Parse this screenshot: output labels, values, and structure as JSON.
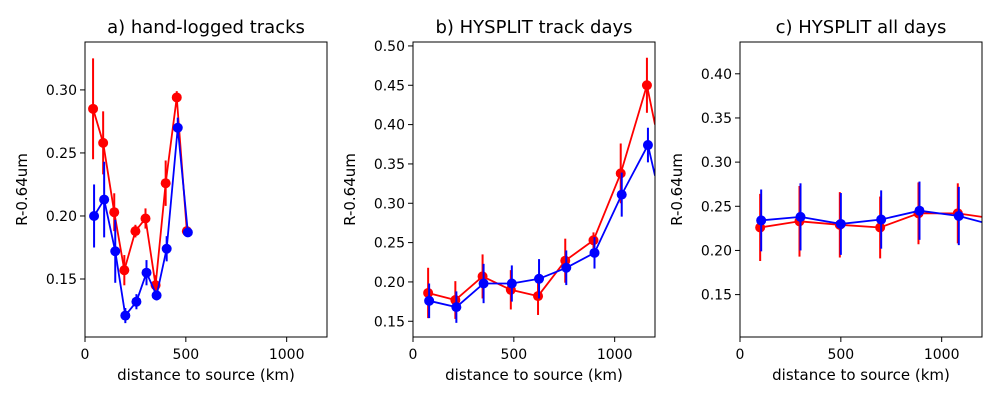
{
  "chart_data": [
    {
      "type": "line",
      "title": "a) hand-logged tracks",
      "xlabel": "distance to source (km)",
      "ylabel": "R-0.64um",
      "xlim": [
        0,
        1200
      ],
      "ylim": [
        0.104,
        0.338
      ],
      "xticks": [
        0,
        500,
        1000
      ],
      "xtick_labels": [
        "0",
        "500",
        "1000"
      ],
      "yticks": [
        0.15,
        0.2,
        0.25,
        0.3
      ],
      "ytick_labels": [
        "0.15",
        "0.20",
        "0.25",
        "0.30"
      ],
      "series": [
        {
          "name": "red",
          "color": "#ff0000",
          "x": [
            40,
            90,
            145,
            195,
            250,
            300,
            350,
            400,
            455,
            505
          ],
          "y": [
            0.285,
            0.258,
            0.203,
            0.157,
            0.188,
            0.198,
            0.145,
            0.226,
            0.294,
            0.188
          ],
          "err": [
            0.04,
            0.025,
            0.015,
            0.012,
            0.005,
            0.008,
            0.008,
            0.018,
            0.005,
            0.003
          ]
        },
        {
          "name": "blue",
          "color": "#0000ff",
          "x": [
            45,
            95,
            150,
            200,
            255,
            305,
            355,
            405,
            460,
            510
          ],
          "y": [
            0.2,
            0.213,
            0.172,
            0.121,
            0.132,
            0.155,
            0.137,
            0.174,
            0.27,
            0.187
          ],
          "err": [
            0.025,
            0.03,
            0.025,
            0.006,
            0.006,
            0.01,
            0.004,
            0.01,
            0.008,
            0.003
          ]
        }
      ]
    },
    {
      "type": "line",
      "title": "b) HYSPLIT track days",
      "xlabel": "distance to source (km)",
      "ylabel": "R-0.64um",
      "xlim": [
        0,
        1200
      ],
      "ylim": [
        0.13,
        0.505
      ],
      "xticks": [
        0,
        500,
        1000
      ],
      "xtick_labels": [
        "0",
        "500",
        "1000"
      ],
      "yticks": [
        0.15,
        0.2,
        0.25,
        0.3,
        0.35,
        0.4,
        0.45,
        0.5
      ],
      "ytick_labels": [
        "0.15",
        "0.20",
        "0.25",
        "0.30",
        "0.35",
        "0.40",
        "0.45",
        "0.50"
      ],
      "series": [
        {
          "name": "red",
          "color": "#ff0000",
          "x": [
            75,
            210,
            345,
            485,
            620,
            755,
            895,
            1030,
            1160,
            1200
          ],
          "y": [
            0.186,
            0.177,
            0.207,
            0.19,
            0.182,
            0.227,
            0.253,
            0.338,
            0.45,
            0.4
          ],
          "err": [
            0.032,
            0.024,
            0.028,
            0.025,
            0.024,
            0.028,
            0.01,
            0.038,
            0.035,
            0
          ]
        },
        {
          "name": "blue",
          "color": "#0000ff",
          "x": [
            80,
            215,
            350,
            490,
            625,
            760,
            900,
            1035,
            1165,
            1200
          ],
          "y": [
            0.176,
            0.168,
            0.198,
            0.198,
            0.204,
            0.218,
            0.237,
            0.311,
            0.374,
            0.335
          ],
          "err": [
            0.022,
            0.02,
            0.025,
            0.023,
            0.025,
            0.022,
            0.02,
            0.028,
            0.022,
            0
          ]
        }
      ]
    },
    {
      "type": "line",
      "title": "c) HYSPLIT all days",
      "xlabel": "distance to source (km)",
      "ylabel": "R-0.64um",
      "xlim": [
        0,
        1200
      ],
      "ylim": [
        0.102,
        0.436
      ],
      "xticks": [
        0,
        500,
        1000
      ],
      "xtick_labels": [
        "0",
        "500",
        "1000"
      ],
      "yticks": [
        0.15,
        0.2,
        0.25,
        0.3,
        0.35,
        0.4
      ],
      "ytick_labels": [
        "0.15",
        "0.20",
        "0.25",
        "0.30",
        "0.35",
        "0.40"
      ],
      "series": [
        {
          "name": "red",
          "color": "#ff0000",
          "x": [
            100,
            295,
            495,
            695,
            885,
            1080,
            1200
          ],
          "y": [
            0.226,
            0.233,
            0.229,
            0.226,
            0.242,
            0.242,
            0.238
          ],
          "err": [
            0.038,
            0.04,
            0.037,
            0.035,
            0.035,
            0.034,
            0
          ]
        },
        {
          "name": "blue",
          "color": "#0000ff",
          "x": [
            105,
            300,
            500,
            700,
            890,
            1085,
            1200
          ],
          "y": [
            0.234,
            0.238,
            0.23,
            0.235,
            0.245,
            0.239,
            0.232
          ],
          "err": [
            0.035,
            0.038,
            0.035,
            0.033,
            0.033,
            0.033,
            0
          ]
        }
      ]
    }
  ]
}
